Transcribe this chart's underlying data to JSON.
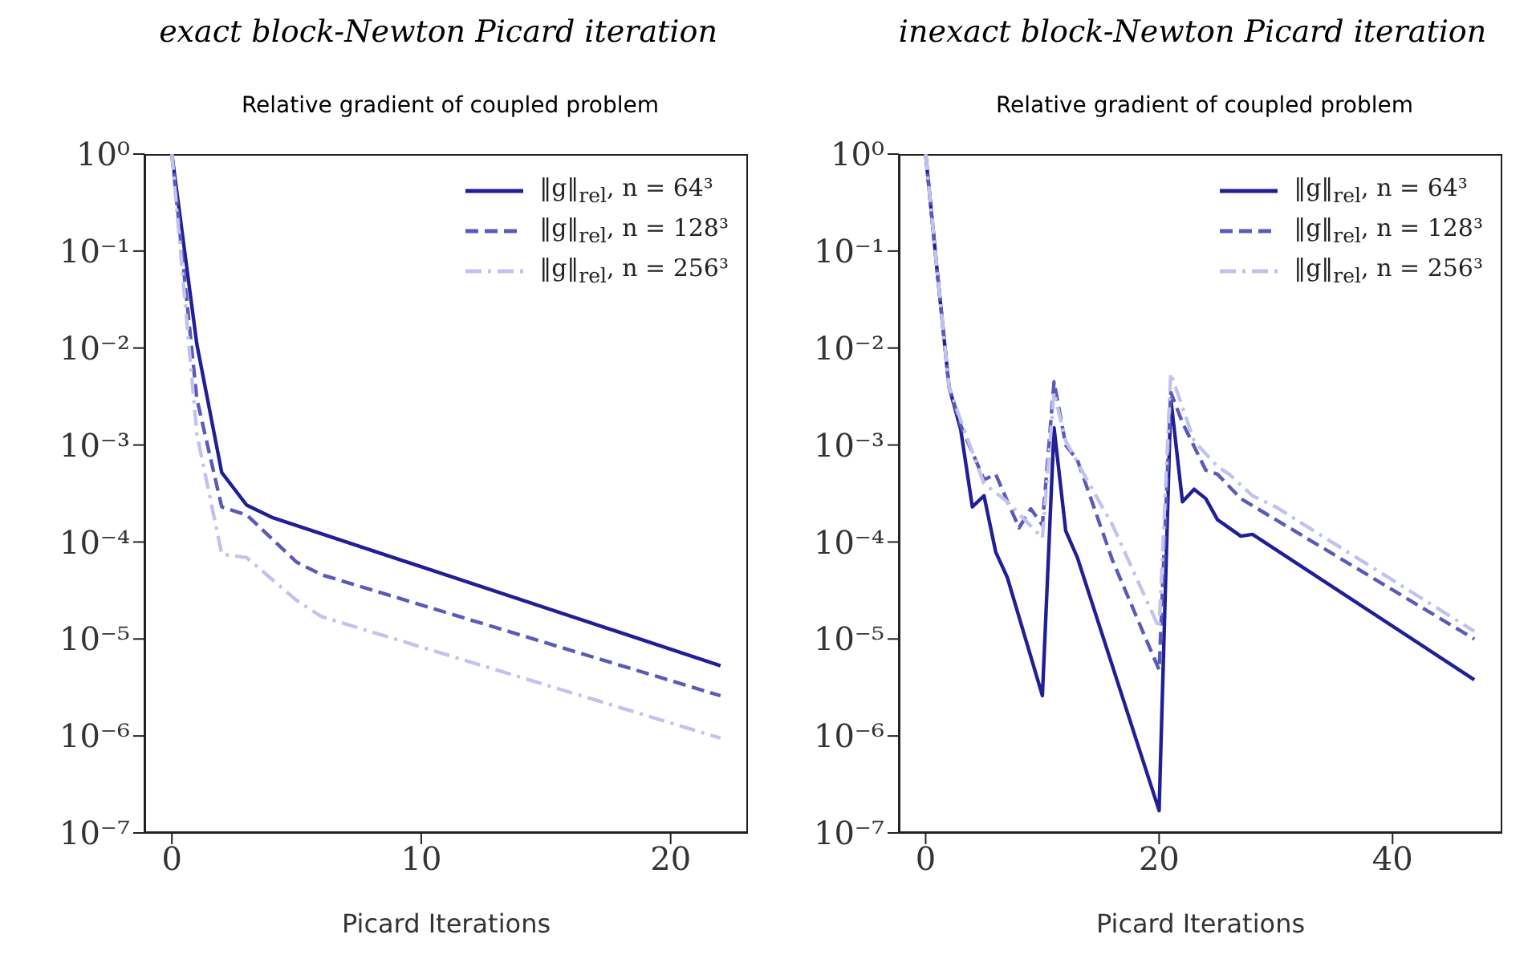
{
  "chart_data": [
    {
      "type": "line",
      "title": "exact block-Newton Picard iteration",
      "subtitle": "Relative gradient of coupled problem",
      "xlabel": "Picard Iterations",
      "log": "y",
      "legend": "top right",
      "xlim": [
        -1.1,
        23.1
      ],
      "xticks": [
        0,
        10,
        20
      ],
      "ylim": [
        1e-07,
        1
      ],
      "yticks": [
        {
          "value": 1,
          "label": "10⁰"
        },
        {
          "value": 0.1,
          "label": "10⁻¹"
        },
        {
          "value": 0.01,
          "label": "10⁻²"
        },
        {
          "value": 0.001,
          "label": "10⁻³"
        },
        {
          "value": 0.0001,
          "label": "10⁻⁴"
        },
        {
          "value": 1e-05,
          "label": "10⁻⁵"
        },
        {
          "value": 1e-06,
          "label": "10⁻⁶"
        },
        {
          "value": 1e-07,
          "label": "10⁻⁷"
        }
      ],
      "series": [
        {
          "name": "‖g‖$_{rel}$, n = 64³",
          "color": "#1f1f96",
          "line_style": "solid",
          "x": [
            0,
            1,
            2,
            3,
            4,
            22
          ],
          "values": [
            1,
            0.011,
            0.00052,
            0.00024,
            0.00018,
            5.3e-06
          ]
        },
        {
          "name": "‖g‖$_{rel}$, n = 128³",
          "color": "#5a5ab8",
          "line_style": "dashed",
          "x": [
            0,
            1,
            2,
            3,
            5,
            6,
            22
          ],
          "values": [
            1,
            0.003,
            0.00023,
            0.00019,
            6.2e-05,
            4.6e-05,
            2.6e-06
          ]
        },
        {
          "name": "‖g‖$_{rel}$, n = 256³",
          "color": "#c2c2ee",
          "line_style": "dashdot",
          "x": [
            0,
            1,
            2,
            3,
            5,
            6,
            22
          ],
          "values": [
            1,
            0.0013,
            7.5e-05,
            6.9e-05,
            2.5e-05,
            1.7e-05,
            9.5e-07
          ]
        }
      ]
    },
    {
      "type": "line",
      "title": "inexact block-Newton Picard iteration",
      "subtitle": "Relative gradient of coupled problem",
      "xlabel": "Picard Iterations",
      "log": "y",
      "legend": "top right",
      "xlim": [
        -2.3,
        49.4
      ],
      "xticks": [
        0,
        20,
        40
      ],
      "ylim": [
        1e-07,
        1
      ],
      "yticks": [
        {
          "value": 1,
          "label": "10⁰"
        },
        {
          "value": 0.1,
          "label": "10⁻¹"
        },
        {
          "value": 0.01,
          "label": "10⁻²"
        },
        {
          "value": 0.001,
          "label": "10⁻³"
        },
        {
          "value": 0.0001,
          "label": "10⁻⁴"
        },
        {
          "value": 1e-05,
          "label": "10⁻⁵"
        },
        {
          "value": 1e-06,
          "label": "10⁻⁶"
        },
        {
          "value": 1e-07,
          "label": "10⁻⁷"
        }
      ],
      "series": [
        {
          "name": "‖g‖$_{rel}$, n = 64³",
          "color": "#1f1f96",
          "line_style": "solid",
          "x": [
            0,
            1,
            2,
            3,
            4,
            5,
            6,
            7,
            10,
            11,
            12,
            13,
            20,
            21,
            22,
            23,
            24,
            25,
            27,
            28,
            47
          ],
          "values": [
            1,
            0.06,
            0.004,
            0.00145,
            0.00023,
            0.0003,
            7.9e-05,
            4.3e-05,
            2.6e-06,
            0.0015,
            0.00013,
            6.9e-05,
            1.7e-07,
            0.003,
            0.00026,
            0.00035,
            0.00028,
            0.00017,
            0.000115,
            0.00012,
            3.8e-06
          ]
        },
        {
          "name": "‖g‖$_{rel}$, n = 128³",
          "color": "#5a5ab8",
          "line_style": "dashed",
          "x": [
            0,
            1,
            2,
            3,
            5,
            6,
            8,
            9,
            10,
            11,
            12,
            13,
            16,
            20,
            21,
            22,
            24,
            25,
            27,
            47
          ],
          "values": [
            1,
            0.06,
            0.004,
            0.0016,
            0.00044,
            0.0005,
            0.00014,
            0.00022,
            0.00015,
            0.0045,
            0.001,
            0.0007,
            6.5e-05,
            4.8e-06,
            0.0035,
            0.0017,
            0.00055,
            0.0005,
            0.00028,
            1e-05
          ]
        },
        {
          "name": "‖g‖$_{rel}$, n = 256³",
          "color": "#c2c2ee",
          "line_style": "dashdot",
          "x": [
            0,
            1,
            2,
            3,
            5,
            7,
            10,
            11,
            12,
            14,
            16,
            20,
            21,
            23,
            25,
            26,
            28,
            30,
            47
          ],
          "values": [
            1,
            0.06,
            0.004,
            0.0018,
            0.0004,
            0.00026,
            0.00011,
            0.0035,
            0.0011,
            0.0004,
            0.00015,
            1.3e-05,
            0.0055,
            0.0011,
            0.0006,
            0.0005,
            0.0003,
            0.00023,
            1.2e-05
          ]
        }
      ]
    }
  ]
}
